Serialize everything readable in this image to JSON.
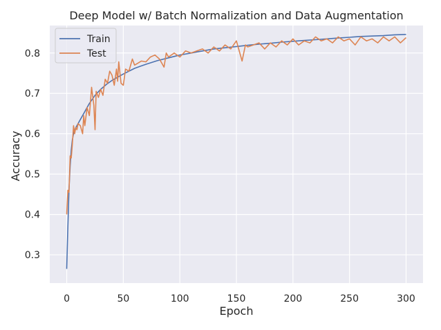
{
  "chart_data": {
    "type": "line",
    "title": "Deep Model w/ Batch Normalization and Data Augmentation",
    "xlabel": "Epoch",
    "ylabel": "Accuracy",
    "xlim": [
      -15,
      315
    ],
    "ylim": [
      0.23,
      0.868
    ],
    "xticks": [
      0,
      50,
      100,
      150,
      200,
      250,
      300
    ],
    "yticks": [
      0.3,
      0.4,
      0.5,
      0.6,
      0.7,
      0.8
    ],
    "grid": true,
    "legend_position": "top-left",
    "background": "#eaeaf2",
    "series": [
      {
        "name": "Train",
        "color": "#4c72b0",
        "x": [
          0,
          1,
          2,
          3,
          4,
          5,
          6,
          8,
          10,
          12,
          15,
          18,
          20,
          25,
          30,
          35,
          40,
          45,
          50,
          55,
          60,
          65,
          70,
          80,
          90,
          100,
          110,
          120,
          130,
          140,
          150,
          160,
          170,
          180,
          190,
          200,
          210,
          220,
          230,
          240,
          250,
          260,
          270,
          280,
          290,
          300
        ],
        "y": [
          0.265,
          0.37,
          0.46,
          0.52,
          0.56,
          0.585,
          0.6,
          0.615,
          0.625,
          0.635,
          0.65,
          0.665,
          0.675,
          0.695,
          0.71,
          0.722,
          0.732,
          0.74,
          0.748,
          0.755,
          0.762,
          0.767,
          0.772,
          0.781,
          0.788,
          0.795,
          0.8,
          0.805,
          0.81,
          0.813,
          0.816,
          0.819,
          0.822,
          0.824,
          0.827,
          0.829,
          0.831,
          0.833,
          0.835,
          0.837,
          0.839,
          0.841,
          0.842,
          0.843,
          0.845,
          0.846
        ]
      },
      {
        "name": "Test",
        "color": "#dd8452",
        "x": [
          0,
          1,
          2,
          3,
          4,
          5,
          6,
          7,
          8,
          9,
          10,
          12,
          14,
          15,
          16,
          18,
          20,
          22,
          24,
          25,
          26,
          28,
          30,
          32,
          34,
          36,
          38,
          40,
          42,
          44,
          45,
          46,
          48,
          50,
          52,
          55,
          58,
          60,
          63,
          66,
          70,
          74,
          78,
          82,
          86,
          88,
          90,
          95,
          100,
          105,
          110,
          115,
          120,
          125,
          130,
          135,
          140,
          145,
          150,
          152,
          155,
          158,
          160,
          165,
          170,
          175,
          180,
          185,
          190,
          195,
          200,
          205,
          210,
          215,
          220,
          225,
          230,
          235,
          240,
          245,
          250,
          255,
          260,
          265,
          270,
          275,
          280,
          285,
          290,
          295,
          300
        ],
        "y": [
          0.4,
          0.46,
          0.455,
          0.545,
          0.54,
          0.575,
          0.62,
          0.6,
          0.615,
          0.61,
          0.625,
          0.62,
          0.6,
          0.645,
          0.62,
          0.665,
          0.645,
          0.715,
          0.67,
          0.61,
          0.705,
          0.69,
          0.71,
          0.695,
          0.735,
          0.725,
          0.755,
          0.745,
          0.72,
          0.76,
          0.73,
          0.778,
          0.725,
          0.72,
          0.76,
          0.755,
          0.785,
          0.77,
          0.775,
          0.78,
          0.778,
          0.79,
          0.795,
          0.785,
          0.765,
          0.8,
          0.79,
          0.8,
          0.79,
          0.805,
          0.8,
          0.805,
          0.81,
          0.8,
          0.815,
          0.805,
          0.82,
          0.81,
          0.83,
          0.81,
          0.78,
          0.82,
          0.815,
          0.82,
          0.825,
          0.81,
          0.825,
          0.815,
          0.83,
          0.82,
          0.835,
          0.82,
          0.83,
          0.825,
          0.84,
          0.83,
          0.835,
          0.825,
          0.84,
          0.83,
          0.835,
          0.82,
          0.84,
          0.83,
          0.835,
          0.825,
          0.84,
          0.83,
          0.84,
          0.825,
          0.838
        ]
      }
    ]
  }
}
